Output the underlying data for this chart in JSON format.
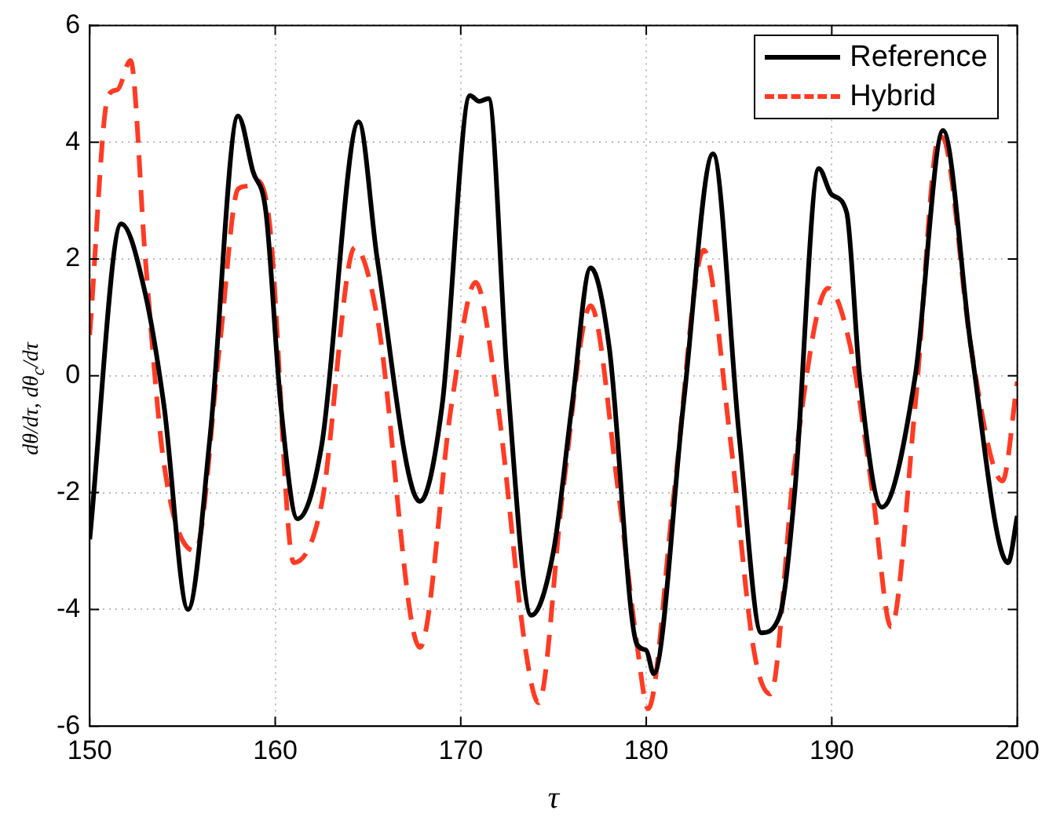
{
  "chart_data": {
    "type": "line",
    "xlabel": "τ",
    "ylabel": "dθ/dτ, dθ$_{c}$/dτ",
    "xlim": [
      150,
      200
    ],
    "xticks": [
      150,
      160,
      170,
      180,
      190,
      200
    ],
    "ylim": [
      -6,
      6
    ],
    "yticks": [
      -6,
      -4,
      -2,
      0,
      2,
      4,
      6
    ],
    "grid": true,
    "legend": "top right",
    "marker": "none",
    "series": [
      {
        "name": "Reference",
        "color": "#000000",
        "line_style": "solid",
        "x": [
          150,
          151.7,
          153,
          154,
          155.3,
          156.5,
          158,
          158.8,
          159.5,
          160.3,
          161.2,
          162.5,
          164.5,
          165.5,
          167.8,
          169,
          170.5,
          171,
          171.5,
          172.5,
          173.8,
          175,
          176,
          177,
          178,
          179.5,
          180,
          180.4,
          182,
          183.6,
          185,
          186.2,
          187.2,
          188,
          189.3,
          190,
          190.8,
          191.5,
          192.7,
          194.5,
          196,
          197.5,
          199.5,
          200
        ],
        "values": [
          -2.8,
          2.6,
          1.4,
          -0.5,
          -4.0,
          -1.0,
          4.45,
          3.5,
          2.8,
          -0.5,
          -2.45,
          -1.2,
          4.35,
          2.0,
          -2.15,
          -0.5,
          4.8,
          4.7,
          4.75,
          0.0,
          -4.1,
          -3.0,
          -0.5,
          1.85,
          0.5,
          -4.6,
          -4.7,
          -5.1,
          -0.5,
          3.8,
          -1.0,
          -4.4,
          -4.1,
          -2.0,
          3.55,
          3.1,
          2.8,
          0.0,
          -2.25,
          0.0,
          4.2,
          0.5,
          -3.2,
          -2.4
        ]
      },
      {
        "name": "Hybrid",
        "color": "#ff3b24",
        "line_style": "dashed",
        "x": [
          150,
          151,
          151.5,
          152.2,
          153,
          154,
          155.7,
          157,
          158,
          158.5,
          159,
          159.7,
          161,
          162.5,
          164.3,
          165.5,
          167.8,
          169.5,
          170.8,
          172,
          173.5,
          174.2,
          175.5,
          177,
          178.5,
          179.5,
          180.1,
          181.5,
          183.1,
          184.5,
          185.8,
          186.7,
          188,
          189.8,
          191,
          192.2,
          193.2,
          194.5,
          195.8,
          196.2,
          197.5,
          199.2,
          200
        ],
        "values": [
          0.7,
          4.8,
          4.9,
          5.4,
          2.0,
          -1.5,
          -3.0,
          0.5,
          3.2,
          3.25,
          3.35,
          2.6,
          -3.2,
          -2.2,
          2.2,
          1.0,
          -4.65,
          -0.5,
          1.6,
          -0.5,
          -4.7,
          -5.6,
          -2.0,
          1.2,
          -2.0,
          -4.6,
          -5.7,
          -2.0,
          2.15,
          -1.0,
          -4.7,
          -5.45,
          -1.5,
          1.5,
          0.5,
          -2.0,
          -4.3,
          -0.5,
          4.1,
          3.9,
          0.5,
          -1.8,
          -0.1
        ]
      }
    ]
  }
}
